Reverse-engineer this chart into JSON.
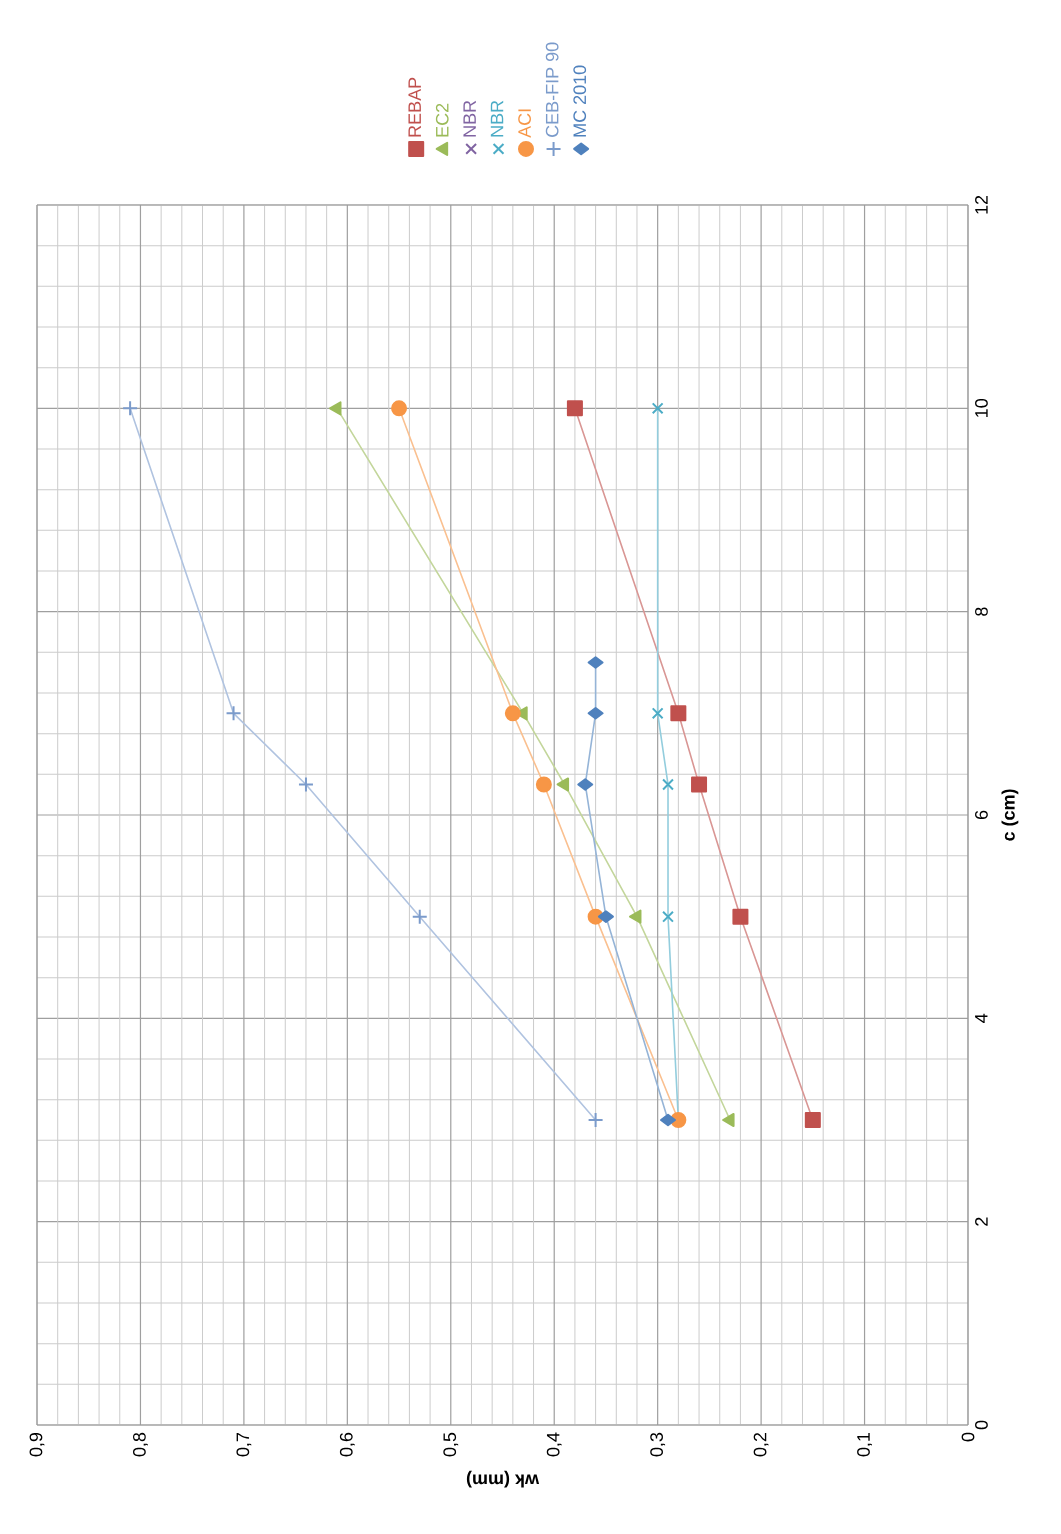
{
  "chart_data": {
    "type": "line",
    "xlabel": "wk (mm)",
    "ylabel": "c (cm)",
    "xlim": [
      0.9,
      0
    ],
    "xticks": [
      {
        "value": 0.9,
        "label": "0,9"
      },
      {
        "value": 0.8,
        "label": "0,8"
      },
      {
        "value": 0.7,
        "label": "0,7"
      },
      {
        "value": 0.6,
        "label": "0,6"
      },
      {
        "value": 0.5,
        "label": "0,5"
      },
      {
        "value": 0.4,
        "label": "0,4"
      },
      {
        "value": 0.3,
        "label": "0,3"
      },
      {
        "value": 0.2,
        "label": "0,2"
      },
      {
        "value": 0.1,
        "label": "0,1"
      },
      0
    ],
    "ylim": [
      0,
      12
    ],
    "yticks": [
      0,
      2,
      4,
      6,
      8,
      10,
      12
    ],
    "grid": true,
    "legend": "top",
    "series": [
      {
        "name": "REBAP",
        "color": "#c0504d",
        "marker": "square",
        "x": [
          0.15,
          0.22,
          0.26,
          0.28,
          0.38
        ],
        "values": [
          3,
          5,
          6.3,
          7,
          10
        ]
      },
      {
        "name": "EC2",
        "color": "#9bbb59",
        "marker": "triangle",
        "x": [
          0.23,
          0.32,
          0.39,
          0.43,
          0.61
        ],
        "values": [
          3,
          5,
          6.3,
          7,
          10
        ]
      },
      {
        "name": "NBR",
        "color": "#8064a2",
        "marker": "cross",
        "x": [
          null,
          null,
          null,
          null,
          null
        ],
        "values": [
          null,
          null,
          null,
          null,
          null
        ]
      },
      {
        "name": "NBR",
        "color": "#4bacc6",
        "marker": "cross",
        "x": [
          0.28,
          0.29,
          0.29,
          0.3,
          0.3
        ],
        "values": [
          3,
          5,
          6.3,
          7,
          10
        ]
      },
      {
        "name": "ACI",
        "color": "#f79646",
        "marker": "circle",
        "x": [
          0.28,
          0.36,
          0.41,
          0.44,
          0.55
        ],
        "values": [
          3,
          5,
          6.3,
          7,
          10
        ]
      },
      {
        "name": "CEB-FIP 90",
        "color": "#7b9bcb",
        "marker": "plus",
        "x": [
          0.36,
          0.53,
          0.64,
          0.71,
          0.81
        ],
        "values": [
          3,
          5,
          6.3,
          7,
          10
        ]
      },
      {
        "name": "MC 2010",
        "color": "#4f81bd",
        "marker": "diamond",
        "x": [
          0.29,
          0.35,
          0.37,
          0.36,
          0.36
        ],
        "values": [
          3,
          5,
          6.3,
          7,
          7.5
        ]
      }
    ]
  }
}
